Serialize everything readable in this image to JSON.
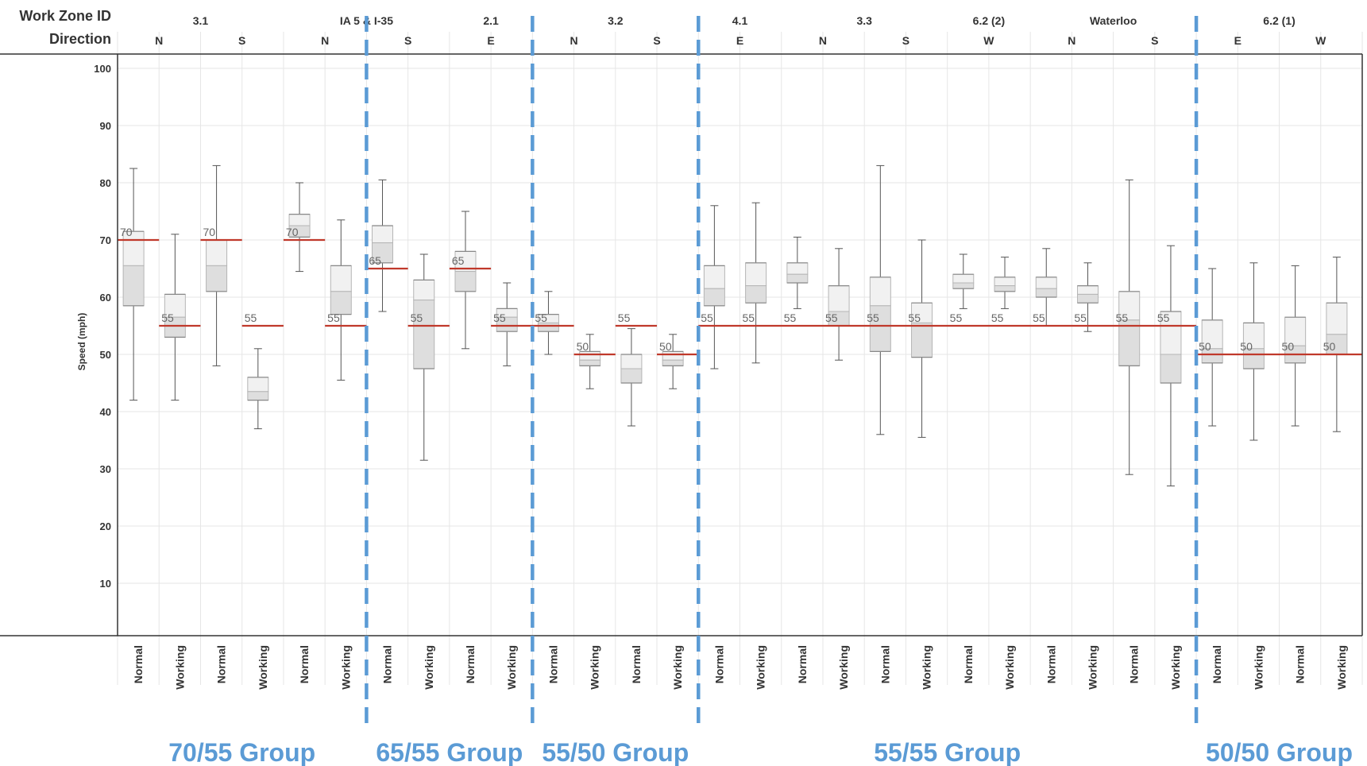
{
  "header": {
    "zone_title": "Work Zone ID",
    "direction_title": "Direction"
  },
  "colors": {
    "limit_line": "#c0392b",
    "group_divider": "#5b9bd5",
    "group_label": "#5b9bd5",
    "box_outline": "#b5b5b5",
    "whisker": "#555555",
    "gridline": "#e6e6e6"
  },
  "chart_data": {
    "type": "box",
    "ylabel": "Speed (mph)",
    "ylim": [
      0,
      100
    ],
    "y_ticks": [
      10,
      20,
      30,
      40,
      50,
      60,
      70,
      80,
      90,
      100
    ],
    "zones": [
      {
        "id": "3.1",
        "directions": [
          "N",
          "S"
        ]
      },
      {
        "id": "IA 5 & I-35",
        "directions": [
          "N",
          "S"
        ]
      },
      {
        "id": "2.1",
        "directions": [
          "E"
        ]
      },
      {
        "id": "3.2",
        "directions": [
          "N",
          "S"
        ]
      },
      {
        "id": "4.1",
        "directions": [
          "E"
        ]
      },
      {
        "id": "3.3",
        "directions": [
          "N",
          "S"
        ]
      },
      {
        "id": "6.2 (2)",
        "directions": [
          "W"
        ]
      },
      {
        "id": "Waterloo",
        "directions": [
          "N",
          "S"
        ]
      },
      {
        "id": "6.2 (1)",
        "directions": [
          "E",
          "W"
        ]
      }
    ],
    "columns": [
      {
        "dir": "N",
        "cond": "Normal",
        "limit": 70,
        "min": 42,
        "q1": 58.5,
        "median": 65.5,
        "q3": 71.5,
        "max": 82.5
      },
      {
        "dir": "N",
        "cond": "Working",
        "limit": 55,
        "min": 42,
        "q1": 53,
        "median": 56.5,
        "q3": 60.5,
        "max": 71
      },
      {
        "dir": "S",
        "cond": "Normal",
        "limit": 70,
        "min": 48,
        "q1": 61,
        "median": 65.5,
        "q3": 70,
        "max": 83
      },
      {
        "dir": "S",
        "cond": "Working",
        "limit": 55,
        "min": 37,
        "q1": 42,
        "median": 43.5,
        "q3": 46,
        "max": 51
      },
      {
        "dir": "N",
        "cond": "Normal",
        "limit": 70,
        "min": 64.5,
        "q1": 70.5,
        "median": 72.5,
        "q3": 74.5,
        "max": 80
      },
      {
        "dir": "N",
        "cond": "Working",
        "limit": 55,
        "min": 45.5,
        "q1": 57,
        "median": 61,
        "q3": 65.5,
        "max": 73.5
      },
      {
        "dir": "S",
        "cond": "Normal",
        "limit": 65,
        "min": 57.5,
        "q1": 66,
        "median": 69.5,
        "q3": 72.5,
        "max": 80.5
      },
      {
        "dir": "S",
        "cond": "Working",
        "limit": 55,
        "min": 31.5,
        "q1": 47.5,
        "median": 59.5,
        "q3": 63,
        "max": 67.5
      },
      {
        "dir": "E",
        "cond": "Normal",
        "limit": 65,
        "min": 51,
        "q1": 61,
        "median": 64.5,
        "q3": 68,
        "max": 75
      },
      {
        "dir": "E",
        "cond": "Working",
        "limit": 55,
        "min": 48,
        "q1": 54,
        "median": 56.5,
        "q3": 58,
        "max": 62.5
      },
      {
        "dir": "N",
        "cond": "Normal",
        "limit": 55,
        "min": 50,
        "q1": 54,
        "median": 55.5,
        "q3": 57,
        "max": 61
      },
      {
        "dir": "N",
        "cond": "Working",
        "limit": 50,
        "min": 44,
        "q1": 48,
        "median": 49,
        "q3": 50.5,
        "max": 53.5
      },
      {
        "dir": "S",
        "cond": "Normal",
        "limit": 55,
        "min": 37.5,
        "q1": 45,
        "median": 47.5,
        "q3": 50,
        "max": 54.5
      },
      {
        "dir": "S",
        "cond": "Working",
        "limit": 50,
        "min": 44,
        "q1": 48,
        "median": 49,
        "q3": 50.5,
        "max": 53.5
      },
      {
        "dir": "E",
        "cond": "Normal",
        "limit": 55,
        "min": 47.5,
        "q1": 58.5,
        "median": 61.5,
        "q3": 65.5,
        "max": 76
      },
      {
        "dir": "E",
        "cond": "Working",
        "limit": 55,
        "min": 48.5,
        "q1": 59,
        "median": 62,
        "q3": 66,
        "max": 76.5
      },
      {
        "dir": "N",
        "cond": "Normal",
        "limit": 55,
        "min": 58,
        "q1": 62.5,
        "median": 64,
        "q3": 66,
        "max": 70.5
      },
      {
        "dir": "N",
        "cond": "Working",
        "limit": 55,
        "min": 49,
        "q1": 55,
        "median": 57.5,
        "q3": 62,
        "max": 68.5
      },
      {
        "dir": "S",
        "cond": "Normal",
        "limit": 55,
        "min": 36,
        "q1": 50.5,
        "median": 58.5,
        "q3": 63.5,
        "max": 83
      },
      {
        "dir": "S",
        "cond": "Working",
        "limit": 55,
        "min": 35.5,
        "q1": 49.5,
        "median": 55.5,
        "q3": 59,
        "max": 70
      },
      {
        "dir": "W",
        "cond": "Normal",
        "limit": 55,
        "min": 58,
        "q1": 61.5,
        "median": 62.5,
        "q3": 64,
        "max": 67.5
      },
      {
        "dir": "W",
        "cond": "Working",
        "limit": 55,
        "min": 58,
        "q1": 61,
        "median": 62,
        "q3": 63.5,
        "max": 67
      },
      {
        "dir": "N",
        "cond": "Normal",
        "limit": 55,
        "min": 55,
        "q1": 60,
        "median": 61.5,
        "q3": 63.5,
        "max": 68.5
      },
      {
        "dir": "N",
        "cond": "Working",
        "limit": 55,
        "min": 54,
        "q1": 59,
        "median": 60.5,
        "q3": 62,
        "max": 66
      },
      {
        "dir": "S",
        "cond": "Normal",
        "limit": 55,
        "min": 29,
        "q1": 48,
        "median": 56,
        "q3": 61,
        "max": 80.5
      },
      {
        "dir": "S",
        "cond": "Working",
        "limit": 55,
        "min": 27,
        "q1": 45,
        "median": 50,
        "q3": 57.5,
        "max": 69
      },
      {
        "dir": "E",
        "cond": "Normal",
        "limit": 50,
        "min": 37.5,
        "q1": 48.5,
        "median": 51,
        "q3": 56,
        "max": 65
      },
      {
        "dir": "E",
        "cond": "Working",
        "limit": 50,
        "min": 35,
        "q1": 47.5,
        "median": 51,
        "q3": 55.5,
        "max": 66
      },
      {
        "dir": "W",
        "cond": "Normal",
        "limit": 50,
        "min": 37.5,
        "q1": 48.5,
        "median": 51.5,
        "q3": 56.5,
        "max": 65.5
      },
      {
        "dir": "W",
        "cond": "Working",
        "limit": 50,
        "min": 36.5,
        "q1": 50,
        "median": 53.5,
        "q3": 59,
        "max": 67
      }
    ],
    "groups": [
      {
        "label": "70/55 Group",
        "first_col": 0,
        "last_col": 5
      },
      {
        "label": "65/55 Group",
        "first_col": 6,
        "last_col": 9
      },
      {
        "label": "55/50 Group",
        "first_col": 10,
        "last_col": 13
      },
      {
        "label": "55/55 Group",
        "first_col": 14,
        "last_col": 25
      },
      {
        "label": "50/50 Group",
        "first_col": 26,
        "last_col": 29
      }
    ],
    "limit_segments": [
      {
        "value": 70,
        "first_col": 0,
        "last_col": 0
      },
      {
        "value": 55,
        "first_col": 1,
        "last_col": 1
      },
      {
        "value": 70,
        "first_col": 2,
        "last_col": 2
      },
      {
        "value": 55,
        "first_col": 3,
        "last_col": 3
      },
      {
        "value": 70,
        "first_col": 4,
        "last_col": 4
      },
      {
        "value": 55,
        "first_col": 5,
        "last_col": 5
      },
      {
        "value": 65,
        "first_col": 6,
        "last_col": 6
      },
      {
        "value": 55,
        "first_col": 7,
        "last_col": 7
      },
      {
        "value": 65,
        "first_col": 8,
        "last_col": 8
      },
      {
        "value": 55,
        "first_col": 9,
        "last_col": 10
      },
      {
        "value": 50,
        "first_col": 11,
        "last_col": 11
      },
      {
        "value": 55,
        "first_col": 12,
        "last_col": 12
      },
      {
        "value": 50,
        "first_col": 13,
        "last_col": 13
      },
      {
        "value": 55,
        "first_col": 14,
        "last_col": 25
      },
      {
        "value": 50,
        "first_col": 26,
        "last_col": 29
      }
    ]
  }
}
